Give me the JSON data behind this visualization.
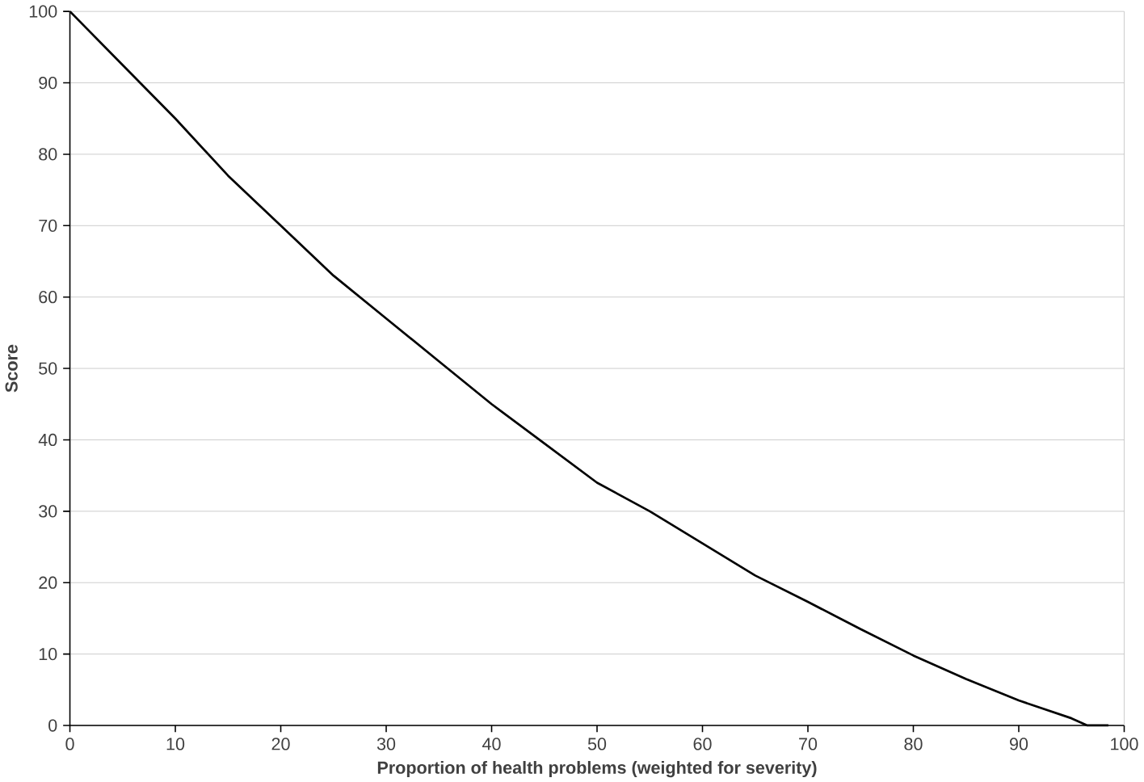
{
  "chart_data": {
    "type": "line",
    "xlabel": "Proportion of health problems (weighted for severity)",
    "ylabel": "Score",
    "x": [
      0,
      5,
      10,
      15,
      20,
      25,
      30,
      35,
      40,
      45,
      50,
      55,
      60,
      65,
      70,
      75,
      80,
      85,
      90,
      95,
      96.5,
      98.5
    ],
    "series": [
      {
        "color": "#000000",
        "values": [
          100,
          92.5,
          85,
          77,
          70,
          63,
          57,
          51,
          45,
          39.5,
          34,
          30,
          25.5,
          21,
          17.3,
          13.5,
          9.8,
          6.5,
          3.5,
          1,
          0,
          0
        ]
      }
    ],
    "xlim": [
      0,
      100
    ],
    "ylim": [
      0,
      100
    ],
    "xticks": [
      0,
      10,
      20,
      30,
      40,
      50,
      60,
      70,
      80,
      90,
      100
    ],
    "yticks": [
      0,
      10,
      20,
      30,
      40,
      50,
      60,
      70,
      80,
      90,
      100
    ],
    "grid": "y",
    "marker": "none",
    "line_style": "solid"
  }
}
